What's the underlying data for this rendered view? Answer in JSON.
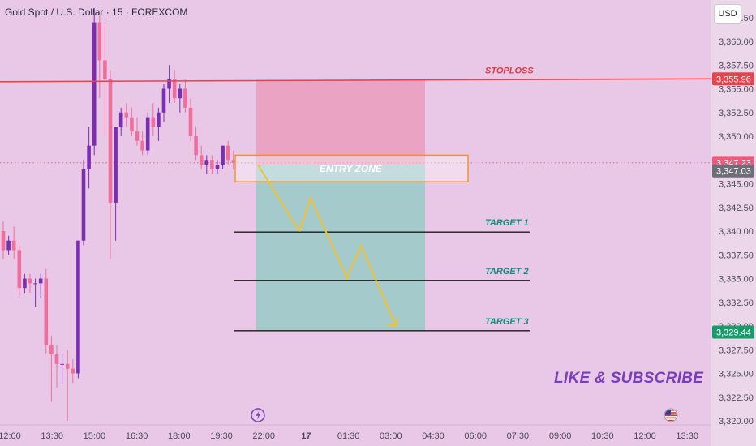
{
  "header": {
    "title": "Gold Spot / U.S. Dollar · 15 · FOREXCOM",
    "currency_button": "USD"
  },
  "colors": {
    "background": "#e8c8e6",
    "bull_candle": "#7a2fb0",
    "bear_candle": "#ee6f9c",
    "stoploss_line": "#e8434a",
    "target_line": "#1a1a1a",
    "risk_zone": "#ea9cbc",
    "reward_zone": "#9ccac8",
    "entry_zone_border": "#f29020",
    "path_arrow": "#f2c230",
    "label_teal": "#128e7c",
    "label_red": "#e03a44",
    "subscribe_text": "#7a3fb8"
  },
  "chart_data": {
    "type": "candlestick",
    "instrument": "Gold Spot / U.S. Dollar",
    "interval": "15",
    "source": "FOREXCOM",
    "ylim": [
      3319.0,
      3364.0
    ],
    "y_ticks": [
      "3,320.00",
      "3,322.50",
      "3,325.00",
      "3,327.50",
      "3,330.00",
      "3,332.50",
      "3,335.00",
      "3,337.50",
      "3,340.00",
      "3,342.50",
      "3,345.00",
      "3,347.50",
      "3,350.00",
      "3,352.50",
      "3,355.00",
      "3,357.50",
      "3,360.00",
      "3,362.50"
    ],
    "x_ticks": [
      "12:00",
      "13:30",
      "15:00",
      "16:30",
      "18:00",
      "19:30",
      "22:00",
      "17",
      "01:30",
      "03:00",
      "04:30",
      "06:00",
      "07:30",
      "09:00",
      "10:30",
      "12:00",
      "13:30"
    ],
    "candles": [
      {
        "o": 3340.0,
        "h": 3341.0,
        "l": 3337.0,
        "c": 3338.0
      },
      {
        "o": 3338.0,
        "h": 3339.5,
        "l": 3337.5,
        "c": 3339.0
      },
      {
        "o": 3339.0,
        "h": 3340.5,
        "l": 3337.0,
        "c": 3338.0
      },
      {
        "o": 3338.0,
        "h": 3338.5,
        "l": 3333.0,
        "c": 3334.0
      },
      {
        "o": 3334.0,
        "h": 3335.5,
        "l": 3333.5,
        "c": 3335.0
      },
      {
        "o": 3335.0,
        "h": 3335.5,
        "l": 3333.5,
        "c": 3334.5
      },
      {
        "o": 3334.5,
        "h": 3335.0,
        "l": 3332.0,
        "c": 3334.5
      },
      {
        "o": 3334.5,
        "h": 3335.5,
        "l": 3333.0,
        "c": 3335.0
      },
      {
        "o": 3335.0,
        "h": 3336.0,
        "l": 3327.0,
        "c": 3328.0
      },
      {
        "o": 3328.0,
        "h": 3329.0,
        "l": 3322.0,
        "c": 3327.0
      },
      {
        "o": 3327.0,
        "h": 3328.0,
        "l": 3323.5,
        "c": 3326.0
      },
      {
        "o": 3326.0,
        "h": 3327.0,
        "l": 3324.0,
        "c": 3326.0
      },
      {
        "o": 3326.0,
        "h": 3327.5,
        "l": 3320.0,
        "c": 3325.5
      },
      {
        "o": 3325.5,
        "h": 3326.5,
        "l": 3324.0,
        "c": 3325.0
      },
      {
        "o": 3325.0,
        "h": 3339.0,
        "l": 3324.5,
        "c": 3339.0
      },
      {
        "o": 3339.0,
        "h": 3347.5,
        "l": 3338.5,
        "c": 3346.5
      },
      {
        "o": 3346.5,
        "h": 3351.0,
        "l": 3344.5,
        "c": 3349.0
      },
      {
        "o": 3349.0,
        "h": 3363.5,
        "l": 3348.0,
        "c": 3362.0
      },
      {
        "o": 3362.0,
        "h": 3363.0,
        "l": 3354.0,
        "c": 3358.0
      },
      {
        "o": 3358.0,
        "h": 3362.0,
        "l": 3350.0,
        "c": 3356.0
      },
      {
        "o": 3356.0,
        "h": 3357.0,
        "l": 3337.0,
        "c": 3343.0
      },
      {
        "o": 3343.0,
        "h": 3351.0,
        "l": 3339.0,
        "c": 3351.0
      },
      {
        "o": 3351.0,
        "h": 3353.0,
        "l": 3350.0,
        "c": 3352.5
      },
      {
        "o": 3352.5,
        "h": 3353.5,
        "l": 3351.0,
        "c": 3352.0
      },
      {
        "o": 3352.0,
        "h": 3353.0,
        "l": 3350.0,
        "c": 3350.5
      },
      {
        "o": 3350.5,
        "h": 3352.0,
        "l": 3349.0,
        "c": 3349.5
      },
      {
        "o": 3349.5,
        "h": 3350.5,
        "l": 3348.0,
        "c": 3348.5
      },
      {
        "o": 3348.5,
        "h": 3352.5,
        "l": 3348.0,
        "c": 3352.0
      },
      {
        "o": 3352.0,
        "h": 3353.5,
        "l": 3350.0,
        "c": 3351.0
      },
      {
        "o": 3351.0,
        "h": 3353.0,
        "l": 3349.5,
        "c": 3352.5
      },
      {
        "o": 3352.5,
        "h": 3355.5,
        "l": 3351.5,
        "c": 3355.0
      },
      {
        "o": 3355.0,
        "h": 3357.5,
        "l": 3353.5,
        "c": 3356.0
      },
      {
        "o": 3356.0,
        "h": 3357.0,
        "l": 3353.5,
        "c": 3354.0
      },
      {
        "o": 3354.0,
        "h": 3355.5,
        "l": 3352.5,
        "c": 3355.0
      },
      {
        "o": 3355.0,
        "h": 3356.0,
        "l": 3352.5,
        "c": 3353.0
      },
      {
        "o": 3353.0,
        "h": 3354.0,
        "l": 3349.5,
        "c": 3350.0
      },
      {
        "o": 3350.0,
        "h": 3351.0,
        "l": 3347.5,
        "c": 3348.0
      },
      {
        "o": 3348.0,
        "h": 3349.0,
        "l": 3346.5,
        "c": 3347.0
      },
      {
        "o": 3347.0,
        "h": 3348.0,
        "l": 3346.0,
        "c": 3347.5
      },
      {
        "o": 3347.5,
        "h": 3348.0,
        "l": 3346.0,
        "c": 3346.5
      },
      {
        "o": 3346.5,
        "h": 3347.5,
        "l": 3346.0,
        "c": 3347.0
      },
      {
        "o": 3347.0,
        "h": 3349.0,
        "l": 3346.5,
        "c": 3349.0
      },
      {
        "o": 3349.0,
        "h": 3349.5,
        "l": 3347.0,
        "c": 3347.5
      },
      {
        "o": 3347.5,
        "h": 3348.5,
        "l": 3346.5,
        "c": 3347.2
      }
    ],
    "price_labels": {
      "stoploss": {
        "text": "3,355.96",
        "value": 3355.96
      },
      "current_high": {
        "text": "3,347.23",
        "value": 3347.23
      },
      "current": {
        "text": "3,347.03",
        "value": 3347.03
      },
      "target3_price": {
        "text": "3,329.44",
        "value": 3329.44
      }
    },
    "annotations": {
      "stoploss_label": "STOPLOSS",
      "entry_zone_label": "ENTRY ZONE",
      "targets": [
        {
          "label": "TARGET 1",
          "value": 3339.9
        },
        {
          "label": "TARGET 2",
          "value": 3334.8
        },
        {
          "label": "TARGET 3",
          "value": 3329.5
        }
      ],
      "entry_zone": {
        "top": 3348.0,
        "bottom": 3345.2
      },
      "risk_zone": {
        "top": 3355.96,
        "bottom": 3347.0
      },
      "reward_zone": {
        "top": 3347.0,
        "bottom": 3329.44
      },
      "projected_path": [
        3347.0,
        3340.0,
        3343.5,
        3335.0,
        3338.5,
        3330.0
      ]
    }
  },
  "promo": {
    "text": "LIKE & SUBSCRIBE"
  }
}
